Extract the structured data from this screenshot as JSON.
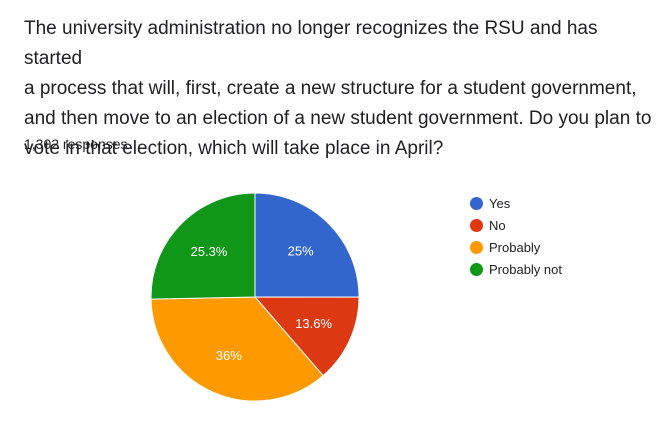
{
  "question": {
    "line1": "The university administration no longer recognizes the RSU and has started",
    "line2": "a process that will, first, create a new structure for a student government,",
    "line3": "and then move to an election of a new student government. Do you plan to",
    "line4": "vote in that election, which will take place in April?"
  },
  "responses_label": "1,302 responses",
  "chart_data": {
    "type": "pie",
    "slices": [
      {
        "label": "Yes",
        "value": 25,
        "display": "25%",
        "color": "#3366cc"
      },
      {
        "label": "No",
        "value": 13.6,
        "display": "13.6%",
        "color": "#dc3912"
      },
      {
        "label": "Probably",
        "value": 36,
        "display": "36%",
        "color": "#ff9900"
      },
      {
        "label": "Probably not",
        "value": 25.3,
        "display": "25.3%",
        "color": "#109618"
      }
    ],
    "legend": "right"
  }
}
